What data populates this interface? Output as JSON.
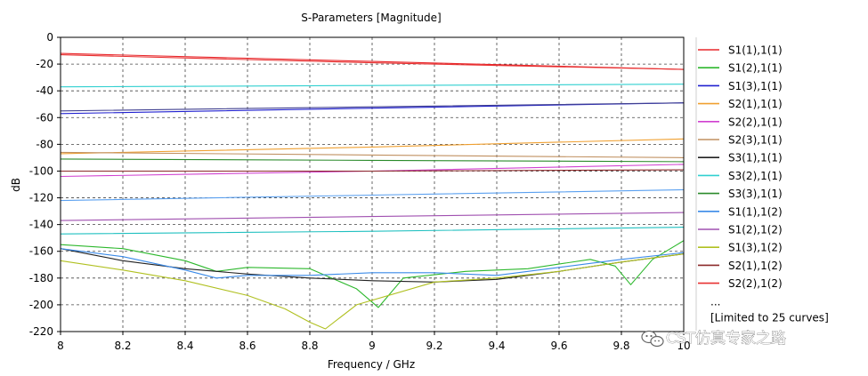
{
  "chart_data": {
    "type": "line",
    "title": "S-Parameters [Magnitude]",
    "xlabel": "Frequency / GHz",
    "ylabel": "dB",
    "xlim": [
      8,
      10
    ],
    "ylim": [
      -220,
      0
    ],
    "xticks": [
      8,
      8.2,
      8.4,
      8.6,
      8.8,
      9,
      9.2,
      9.4,
      9.6,
      9.8,
      10
    ],
    "yticks": [
      0,
      -20,
      -40,
      -60,
      -80,
      -100,
      -120,
      -140,
      -160,
      -180,
      -200,
      -220
    ],
    "grid": true,
    "legend_position": "right",
    "legend_footer": [
      "...",
      "[Limited to 25 curves]"
    ],
    "series": [
      {
        "name": "S1(1),1(1)",
        "color": "#e8262a",
        "x": [
          8,
          9,
          10
        ],
        "y": [
          -12,
          -18,
          -24
        ]
      },
      {
        "name": "S1(2),1(1)",
        "color": "#2db82d",
        "x": [
          8,
          8.2,
          8.4,
          8.5,
          8.6,
          8.8,
          8.95,
          9.02,
          9.1,
          9.3,
          9.5,
          9.7,
          9.78,
          9.83,
          9.9,
          10
        ],
        "y": [
          -155,
          -158,
          -167,
          -175,
          -172,
          -173,
          -188,
          -202,
          -180,
          -175,
          -173,
          -166,
          -171,
          -185,
          -166,
          -152
        ]
      },
      {
        "name": "S1(3),1(1)",
        "color": "#2020d0",
        "x": [
          8,
          9,
          10
        ],
        "y": [
          -57,
          -53,
          -49
        ]
      },
      {
        "name": "S2(1),1(1)",
        "color": "#f0a030",
        "x": [
          8,
          9,
          10
        ],
        "y": [
          -87,
          -82,
          -76
        ]
      },
      {
        "name": "S2(2),1(1)",
        "color": "#d040d0",
        "x": [
          8,
          9,
          10
        ],
        "y": [
          -104,
          -100,
          -95
        ]
      },
      {
        "name": "S2(3),1(1)",
        "color": "#c09060",
        "x": [
          8,
          9,
          10
        ],
        "y": [
          -86,
          -88,
          -90
        ]
      },
      {
        "name": "S3(1),1(1)",
        "color": "#222222",
        "x": [
          8,
          8.2,
          8.4,
          8.6,
          8.8,
          9,
          9.2,
          9.4,
          9.6,
          9.8,
          10
        ],
        "y": [
          -158,
          -167,
          -173,
          -177,
          -180,
          -182,
          -183,
          -181,
          -175,
          -168,
          -162
        ]
      },
      {
        "name": "S3(2),1(1)",
        "color": "#30d0d0",
        "x": [
          8,
          9,
          10
        ],
        "y": [
          -37,
          -36,
          -35
        ]
      },
      {
        "name": "S3(3),1(1)",
        "color": "#2a8a2a",
        "x": [
          8,
          9,
          10
        ],
        "y": [
          -91,
          -92,
          -93
        ]
      },
      {
        "name": "S1(1),1(2)",
        "color": "#3a8ae8",
        "x": [
          8,
          8.2,
          8.4,
          8.5,
          8.6,
          8.8,
          9,
          9.2,
          9.4,
          9.6,
          9.8,
          10
        ],
        "y": [
          -158,
          -164,
          -174,
          -180,
          -178,
          -178,
          -176,
          -176,
          -178,
          -172,
          -166,
          -161
        ]
      },
      {
        "name": "S1(2),1(2)",
        "color": "#a050b0",
        "x": [
          8,
          9,
          10
        ],
        "y": [
          -137,
          -134,
          -131
        ]
      },
      {
        "name": "S1(3),1(2)",
        "color": "#b0c020",
        "x": [
          8,
          8.2,
          8.4,
          8.6,
          8.72,
          8.8,
          8.85,
          8.95,
          9.2,
          9.4,
          9.6,
          9.8,
          10
        ],
        "y": [
          -167,
          -174,
          -182,
          -193,
          -203,
          -213,
          -218,
          -200,
          -183,
          -180,
          -175,
          -168,
          -162
        ]
      },
      {
        "name": "S2(1),1(2)",
        "color": "#8b2a2a",
        "x": [
          8,
          9,
          10
        ],
        "y": [
          -100,
          -100,
          -99
        ]
      },
      {
        "name": "S2(2),1(2)",
        "color": "#e83030",
        "x": [
          8,
          9,
          10
        ],
        "y": [
          -13,
          -19,
          -24
        ]
      },
      {
        "name": "",
        "color": "#5aa0f0",
        "x": [
          8,
          9,
          10
        ],
        "y": [
          -122,
          -118,
          -114
        ]
      },
      {
        "name": "",
        "color": "#20c0c0",
        "x": [
          8,
          9,
          10
        ],
        "y": [
          -147,
          -145,
          -142
        ]
      },
      {
        "name": "",
        "color": "#404090",
        "x": [
          8,
          9,
          10
        ],
        "y": [
          -55,
          -52,
          -49
        ]
      }
    ]
  },
  "watermark": {
    "text": "CST仿真专家之路"
  }
}
